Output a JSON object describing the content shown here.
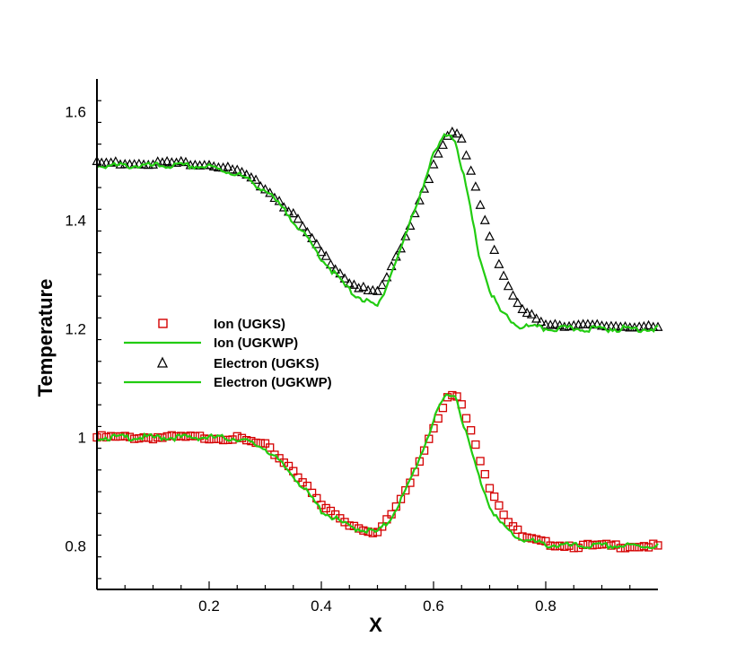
{
  "chart_data": {
    "type": "line",
    "title": "",
    "xlabel": "X",
    "ylabel": "Temperature",
    "xlim": [
      0.0,
      1.0
    ],
    "ylim": [
      0.72,
      1.66
    ],
    "x_ticks": [
      0.2,
      0.4,
      0.6,
      0.8
    ],
    "x_tick_labels": [
      "0.2",
      "0.4",
      "0.6",
      "0.8"
    ],
    "y_ticks": [
      0.8,
      1.0,
      1.2,
      1.4,
      1.6
    ],
    "y_tick_labels": [
      "0.8",
      "1",
      "1.2",
      "1.4",
      "1.6"
    ],
    "grid": false,
    "legend_position": "left-middle",
    "colors": {
      "ion_ugks": "#d40000",
      "ugkwp": "#22cc11",
      "electron_ugks": "#000000"
    },
    "series": [
      {
        "name": "Ion (UGKS)",
        "style": "open-square",
        "x": [
          0.0,
          0.05,
          0.1,
          0.15,
          0.2,
          0.25,
          0.3,
          0.35,
          0.4,
          0.45,
          0.48,
          0.5,
          0.52,
          0.55,
          0.58,
          0.6,
          0.62,
          0.63,
          0.64,
          0.65,
          0.67,
          0.7,
          0.73,
          0.76,
          0.8,
          0.85,
          0.9,
          0.95,
          1.0
        ],
        "y": [
          1.0,
          1.0,
          1.0,
          1.0,
          1.0,
          0.998,
          0.985,
          0.94,
          0.875,
          0.84,
          0.83,
          0.825,
          0.85,
          0.9,
          0.97,
          1.02,
          1.065,
          1.078,
          1.075,
          1.06,
          1.0,
          0.91,
          0.85,
          0.815,
          0.805,
          0.8,
          0.8,
          0.8,
          0.8
        ]
      },
      {
        "name": "Ion (UGKWP)",
        "style": "line",
        "x": [
          0.0,
          0.05,
          0.1,
          0.15,
          0.2,
          0.25,
          0.3,
          0.35,
          0.4,
          0.45,
          0.5,
          0.52,
          0.55,
          0.58,
          0.6,
          0.62,
          0.63,
          0.64,
          0.66,
          0.68,
          0.7,
          0.72,
          0.75,
          0.8,
          0.85,
          0.9,
          0.95,
          1.0
        ],
        "y": [
          1.0,
          1.0,
          1.0,
          1.0,
          1.0,
          0.998,
          0.98,
          0.93,
          0.865,
          0.835,
          0.825,
          0.845,
          0.9,
          0.975,
          1.03,
          1.075,
          1.082,
          1.075,
          1.0,
          0.93,
          0.875,
          0.84,
          0.815,
          0.802,
          0.8,
          0.8,
          0.8,
          0.8
        ]
      },
      {
        "name": "Electron (UGKS)",
        "style": "open-triangle",
        "x": [
          0.0,
          0.05,
          0.1,
          0.15,
          0.2,
          0.25,
          0.3,
          0.35,
          0.4,
          0.45,
          0.48,
          0.5,
          0.52,
          0.55,
          0.58,
          0.6,
          0.62,
          0.63,
          0.64,
          0.65,
          0.67,
          0.7,
          0.73,
          0.76,
          0.8,
          0.85,
          0.9,
          0.95,
          1.0
        ],
        "y": [
          1.505,
          1.505,
          1.505,
          1.505,
          1.503,
          1.49,
          1.46,
          1.41,
          1.34,
          1.285,
          1.27,
          1.265,
          1.3,
          1.37,
          1.45,
          1.5,
          1.545,
          1.558,
          1.56,
          1.548,
          1.48,
          1.37,
          1.28,
          1.23,
          1.21,
          1.205,
          1.205,
          1.205,
          1.2
        ]
      },
      {
        "name": "Electron (UGKWP)",
        "style": "line",
        "x": [
          0.0,
          0.05,
          0.1,
          0.15,
          0.2,
          0.25,
          0.3,
          0.35,
          0.4,
          0.45,
          0.48,
          0.5,
          0.52,
          0.55,
          0.58,
          0.6,
          0.62,
          0.63,
          0.64,
          0.66,
          0.68,
          0.7,
          0.72,
          0.75,
          0.8,
          0.85,
          0.9,
          0.95,
          1.0
        ],
        "y": [
          1.5,
          1.5,
          1.5,
          1.5,
          1.498,
          1.485,
          1.455,
          1.4,
          1.33,
          1.27,
          1.25,
          1.24,
          1.29,
          1.37,
          1.46,
          1.52,
          1.555,
          1.56,
          1.545,
          1.45,
          1.34,
          1.27,
          1.23,
          1.205,
          1.2,
          1.2,
          1.2,
          1.2,
          1.2
        ]
      }
    ]
  }
}
